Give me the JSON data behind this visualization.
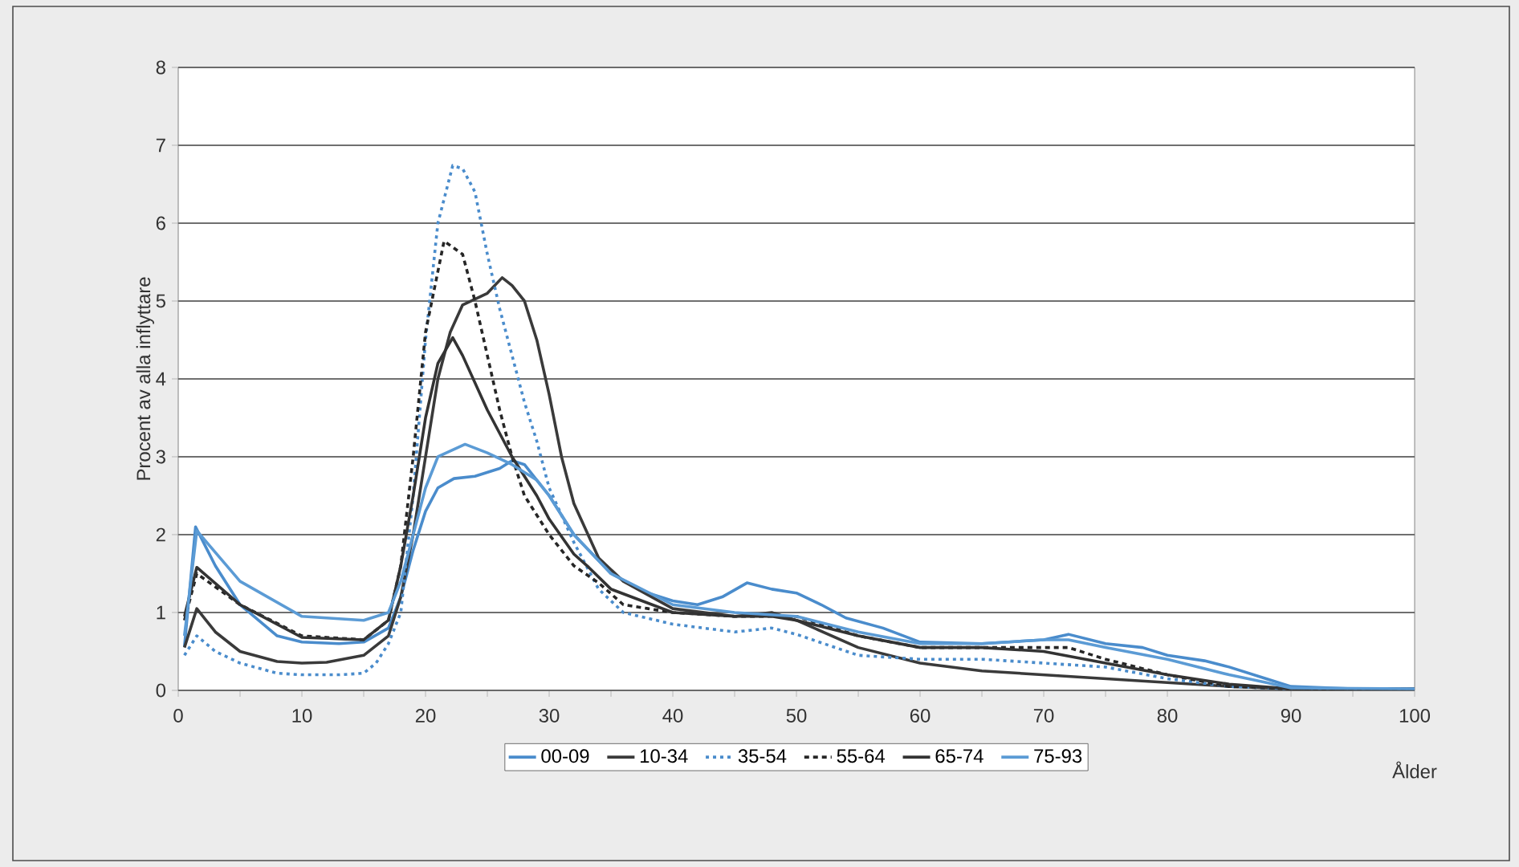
{
  "chart_data": {
    "type": "line",
    "ylabel": "Procent av alla inflyttare",
    "xlabel": "Ålder",
    "xlim": [
      0,
      100
    ],
    "ylim": [
      0,
      8
    ],
    "xticks": [
      0,
      {
        "value": 5,
        "label": null
      },
      10,
      {
        "value": 15,
        "label": null
      },
      20,
      {
        "value": 25,
        "label": null
      },
      30,
      {
        "value": 35,
        "label": null
      },
      40,
      {
        "value": 45,
        "label": null
      },
      50,
      {
        "value": 55,
        "label": null
      },
      60,
      {
        "value": 65,
        "label": null
      },
      70,
      {
        "value": 75,
        "label": null
      },
      80,
      {
        "value": 85,
        "label": null
      },
      90,
      {
        "value": 95,
        "label": null
      },
      100
    ],
    "yticks": [
      0,
      1,
      2,
      3,
      4,
      5,
      6,
      7,
      8
    ],
    "grid": "y",
    "legend": "bottom",
    "marker": "none",
    "series": [
      {
        "name": "00-09",
        "color": "#4a8ccc",
        "line_style": "solid",
        "x": [
          0.5,
          1.4,
          3,
          5,
          8,
          10,
          13,
          15,
          17,
          18,
          19,
          20,
          21,
          22.3,
          24,
          26,
          27,
          28,
          29,
          30,
          32,
          35,
          38,
          40,
          42,
          44,
          46,
          48,
          50,
          52,
          54,
          57,
          60,
          65,
          70,
          72,
          75,
          78,
          80,
          83,
          85,
          88,
          90,
          95,
          100
        ],
        "values": [
          0.56,
          2.1,
          1.6,
          1.1,
          0.7,
          0.62,
          0.6,
          0.62,
          0.8,
          1.2,
          1.8,
          2.3,
          2.6,
          2.72,
          2.75,
          2.85,
          2.95,
          2.9,
          2.7,
          2.5,
          2.0,
          1.5,
          1.25,
          1.15,
          1.1,
          1.2,
          1.38,
          1.3,
          1.25,
          1.1,
          0.93,
          0.8,
          0.62,
          0.6,
          0.65,
          0.72,
          0.6,
          0.55,
          0.45,
          0.38,
          0.3,
          0.15,
          0.05,
          0.02,
          0.02
        ]
      },
      {
        "name": "10-34",
        "color": "#3a3a3a",
        "line_style": "solid",
        "x": [
          0.5,
          1.5,
          3,
          5,
          8,
          10,
          12,
          15,
          17,
          18,
          19,
          20,
          21,
          22,
          23,
          25,
          26.2,
          27,
          28,
          29,
          30,
          31,
          32,
          34,
          36,
          40,
          45,
          48,
          50,
          55,
          60,
          65,
          70,
          75,
          80,
          85,
          90,
          100
        ],
        "values": [
          0.55,
          1.05,
          0.75,
          0.5,
          0.37,
          0.35,
          0.36,
          0.45,
          0.7,
          1.2,
          2.0,
          3.0,
          4.0,
          4.6,
          4.95,
          5.1,
          5.3,
          5.2,
          5.0,
          4.5,
          3.8,
          3.0,
          2.4,
          1.7,
          1.4,
          1.05,
          0.95,
          1.0,
          0.9,
          0.55,
          0.35,
          0.25,
          0.2,
          0.15,
          0.1,
          0.05,
          0.02,
          0.02
        ]
      },
      {
        "name": "35-54",
        "color": "#4a8ccc",
        "line_style": "dotted",
        "x": [
          0.5,
          1.5,
          3,
          5,
          8,
          10,
          13,
          15,
          16,
          17,
          18,
          19,
          20,
          21,
          22.2,
          23,
          24,
          25,
          26,
          27,
          28,
          29,
          30,
          32,
          34,
          36,
          40,
          45,
          48,
          50,
          55,
          60,
          65,
          70,
          75,
          80,
          85,
          90,
          100
        ],
        "values": [
          0.45,
          0.7,
          0.5,
          0.35,
          0.22,
          0.2,
          0.2,
          0.22,
          0.35,
          0.6,
          1.0,
          2.5,
          4.5,
          6.0,
          6.74,
          6.7,
          6.4,
          5.6,
          4.9,
          4.3,
          3.7,
          3.2,
          2.6,
          1.9,
          1.3,
          1.0,
          0.85,
          0.75,
          0.8,
          0.72,
          0.45,
          0.4,
          0.4,
          0.35,
          0.3,
          0.15,
          0.05,
          0.02,
          0.02
        ]
      },
      {
        "name": "55-64",
        "color": "#262626",
        "line_style": "dashed",
        "x": [
          0.5,
          1.5,
          5,
          10,
          15,
          17,
          18,
          19,
          20,
          21.5,
          23,
          24,
          25,
          26,
          27,
          28,
          30,
          32,
          34,
          36,
          38,
          40,
          45,
          50,
          55,
          60,
          65,
          70,
          72,
          75,
          80,
          85,
          90,
          100
        ],
        "values": [
          0.9,
          1.5,
          1.1,
          0.7,
          0.65,
          0.9,
          1.6,
          3.0,
          4.6,
          5.77,
          5.6,
          5.0,
          4.3,
          3.6,
          3.0,
          2.5,
          2.0,
          1.6,
          1.38,
          1.1,
          1.05,
          1.0,
          0.95,
          0.95,
          0.7,
          0.55,
          0.55,
          0.55,
          0.55,
          0.4,
          0.2,
          0.05,
          0.02,
          0.02
        ]
      },
      {
        "name": "65-74",
        "color": "#333333",
        "line_style": "solid",
        "x": [
          0.5,
          1.5,
          5,
          10,
          15,
          17,
          18,
          19,
          20,
          21,
          22.2,
          23,
          25,
          27,
          29,
          30,
          32,
          33.2,
          35,
          40,
          45,
          48,
          50,
          55,
          60,
          65,
          70,
          75,
          80,
          85,
          90,
          100
        ],
        "values": [
          0.95,
          1.58,
          1.1,
          0.68,
          0.65,
          0.9,
          1.6,
          2.5,
          3.5,
          4.2,
          4.53,
          4.3,
          3.6,
          3.0,
          2.5,
          2.2,
          1.75,
          1.58,
          1.3,
          1.0,
          0.95,
          0.95,
          0.9,
          0.7,
          0.55,
          0.55,
          0.5,
          0.35,
          0.2,
          0.08,
          0.02,
          0.02
        ]
      },
      {
        "name": "75-93",
        "color": "#5b9bd5",
        "line_style": "solid",
        "x": [
          0.5,
          1.5,
          5,
          10,
          15,
          17,
          18,
          19,
          20,
          21,
          23.2,
          25,
          27,
          29,
          30,
          32,
          35,
          40,
          45,
          50,
          55,
          60,
          65,
          70,
          72,
          75,
          80,
          85,
          88,
          90,
          100
        ],
        "values": [
          0.7,
          2.05,
          1.4,
          0.95,
          0.9,
          1.0,
          1.4,
          2.0,
          2.6,
          3.0,
          3.16,
          3.05,
          2.9,
          2.7,
          2.5,
          2.0,
          1.5,
          1.1,
          1.0,
          0.95,
          0.75,
          0.6,
          0.6,
          0.65,
          0.65,
          0.55,
          0.4,
          0.2,
          0.1,
          0.03,
          0.02
        ]
      }
    ]
  }
}
